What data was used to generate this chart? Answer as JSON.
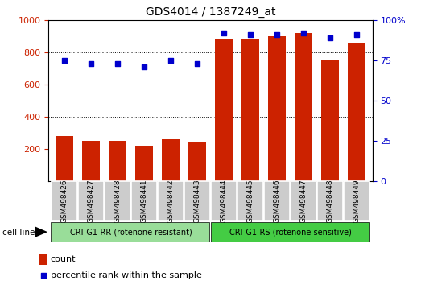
{
  "title": "GDS4014 / 1387249_at",
  "samples": [
    "GSM498426",
    "GSM498427",
    "GSM498428",
    "GSM498441",
    "GSM498442",
    "GSM498443",
    "GSM498444",
    "GSM498445",
    "GSM498446",
    "GSM498447",
    "GSM498448",
    "GSM498449"
  ],
  "counts": [
    280,
    248,
    248,
    218,
    258,
    242,
    880,
    882,
    900,
    920,
    748,
    855
  ],
  "percentile_ranks": [
    75,
    73,
    73,
    71,
    75,
    73,
    92,
    91,
    91,
    92,
    89,
    91
  ],
  "group1_label": "CRI-G1-RR (rotenone resistant)",
  "group2_label": "CRI-G1-RS (rotenone sensitive)",
  "group1_count": 6,
  "group2_count": 6,
  "bar_color": "#cc2200",
  "dot_color": "#0000cc",
  "group1_bg": "#99dd99",
  "group2_bg": "#44cc44",
  "tick_bg": "#cccccc",
  "ylim_left": [
    0,
    1000
  ],
  "ylim_right": [
    0,
    100
  ],
  "left_yticks": [
    200,
    400,
    600,
    800,
    1000
  ],
  "right_yticks": [
    0,
    25,
    50,
    75,
    100
  ],
  "grid_values": [
    400,
    600,
    800
  ],
  "background_color": "#ffffff",
  "cell_line_label": "cell line",
  "legend_count_label": "count",
  "legend_pct_label": "percentile rank within the sample"
}
